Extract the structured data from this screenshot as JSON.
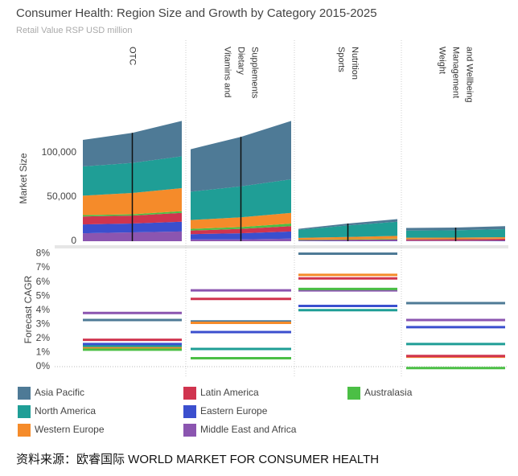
{
  "chart_data": [
    {
      "type": "stacked-area",
      "title": "Consumer Health: Region Size and Growth by Category 2015-2025",
      "subtitle": "Retail Value RSP USD million",
      "y_label": "Market Size",
      "categories": [
        null,
        null,
        null
      ],
      "ylim": [
        0,
        160000
      ],
      "yticks": [
        {
          "value": 0,
          "label": "0"
        },
        {
          "value": 50000,
          "label": "50,000"
        },
        {
          "value": 100000,
          "label": "100,000"
        }
      ],
      "series": [
        {
          "name": "Asia Pacific",
          "color": "#4e7a96"
        },
        {
          "name": "North America",
          "color": "#1f9e96"
        },
        {
          "name": "Western Europe",
          "color": "#f58b2a"
        },
        {
          "name": "Latin America",
          "color": "#d0344f"
        },
        {
          "name": "Eastern Europe",
          "color": "#3b4fce"
        },
        {
          "name": "Middle East and Africa",
          "color": "#8b55b0"
        },
        {
          "name": "Australasia",
          "color": "#4bbf45"
        }
      ],
      "panels": [
        {
          "title": [
            "OTC"
          ],
          "series": [
            {
              "values": [
                30000,
                34000,
                40000
              ]
            },
            {
              "values": [
                33000,
                34000,
                36000
              ]
            },
            {
              "values": [
                22000,
                24000,
                26000
              ]
            },
            {
              "values": [
                9000,
                9000,
                10000
              ]
            },
            {
              "values": [
                10000,
                10000,
                11000
              ]
            },
            {
              "values": [
                9000,
                10000,
                11000
              ]
            },
            {
              "values": [
                1500,
                1500,
                2000
              ]
            }
          ]
        },
        {
          "title": [
            "Vitamins and",
            "Dietary",
            "Supplements"
          ],
          "series": [
            {
              "values": [
                48000,
                56000,
                66000
              ]
            },
            {
              "values": [
                32000,
                35000,
                38000
              ]
            },
            {
              "values": [
                10000,
                11000,
                12000
              ]
            },
            {
              "values": [
                4000,
                5000,
                6000
              ]
            },
            {
              "values": [
                6000,
                7000,
                8000
              ]
            },
            {
              "values": [
                2000,
                2000,
                3000
              ]
            },
            {
              "values": [
                2000,
                2000,
                3000
              ]
            }
          ]
        },
        {
          "title": [
            "Sports",
            "Nutrition"
          ],
          "series": [
            {
              "values": [
                1200,
                2200,
                3000
              ]
            },
            {
              "values": [
                9000,
                13000,
                16000
              ]
            },
            {
              "values": [
                2000,
                2500,
                3000
              ]
            },
            {
              "values": [
                500,
                700,
                900
              ]
            },
            {
              "values": [
                500,
                600,
                800
              ]
            },
            {
              "values": [
                300,
                400,
                500
              ]
            },
            {
              "values": [
                500,
                600,
                800
              ]
            }
          ]
        },
        {
          "title": [
            "Weight",
            "Management",
            "and Wellbeing"
          ],
          "series": [
            {
              "values": [
                3000,
                3000,
                3400
              ]
            },
            {
              "values": [
                8000,
                8300,
                9000
              ]
            },
            {
              "values": [
                1500,
                1500,
                1600
              ]
            },
            {
              "values": [
                1500,
                1600,
                1800
              ]
            },
            {
              "values": [
                400,
                400,
                500
              ]
            },
            {
              "values": [
                300,
                300,
                400
              ]
            },
            {
              "values": [
                300,
                300,
                300
              ]
            }
          ]
        }
      ]
    },
    {
      "type": "level-lines",
      "y_label": "Forecast CAGR",
      "ylim": [
        -0.4,
        8.2
      ],
      "yticks": [
        {
          "value": 0,
          "label": "0%"
        },
        {
          "value": 1,
          "label": "1%"
        },
        {
          "value": 2,
          "label": "2%"
        },
        {
          "value": 3,
          "label": "3%"
        },
        {
          "value": 4,
          "label": "4%"
        },
        {
          "value": 5,
          "label": "5%"
        },
        {
          "value": 6,
          "label": "6%"
        },
        {
          "value": 7,
          "label": "7%"
        },
        {
          "value": 8,
          "label": "8%"
        }
      ],
      "panels": [
        {
          "values": [
            3.3,
            1.45,
            1.3,
            1.9,
            1.6,
            3.8,
            1.2
          ]
        },
        {
          "values": [
            3.2,
            1.25,
            3.1,
            4.8,
            2.45,
            5.4,
            0.6
          ]
        },
        {
          "values": [
            8.0,
            4.0,
            6.5,
            6.25,
            4.3,
            5.4,
            5.5
          ]
        },
        {
          "values": [
            4.5,
            1.6,
            0.7,
            0.75,
            2.8,
            3.3,
            -0.1
          ]
        }
      ]
    },
    {
      "type": "source",
      "text": "资料来源：欧睿国际  WORLD MARKET FOR CONSUMER HEALTH"
    }
  ]
}
